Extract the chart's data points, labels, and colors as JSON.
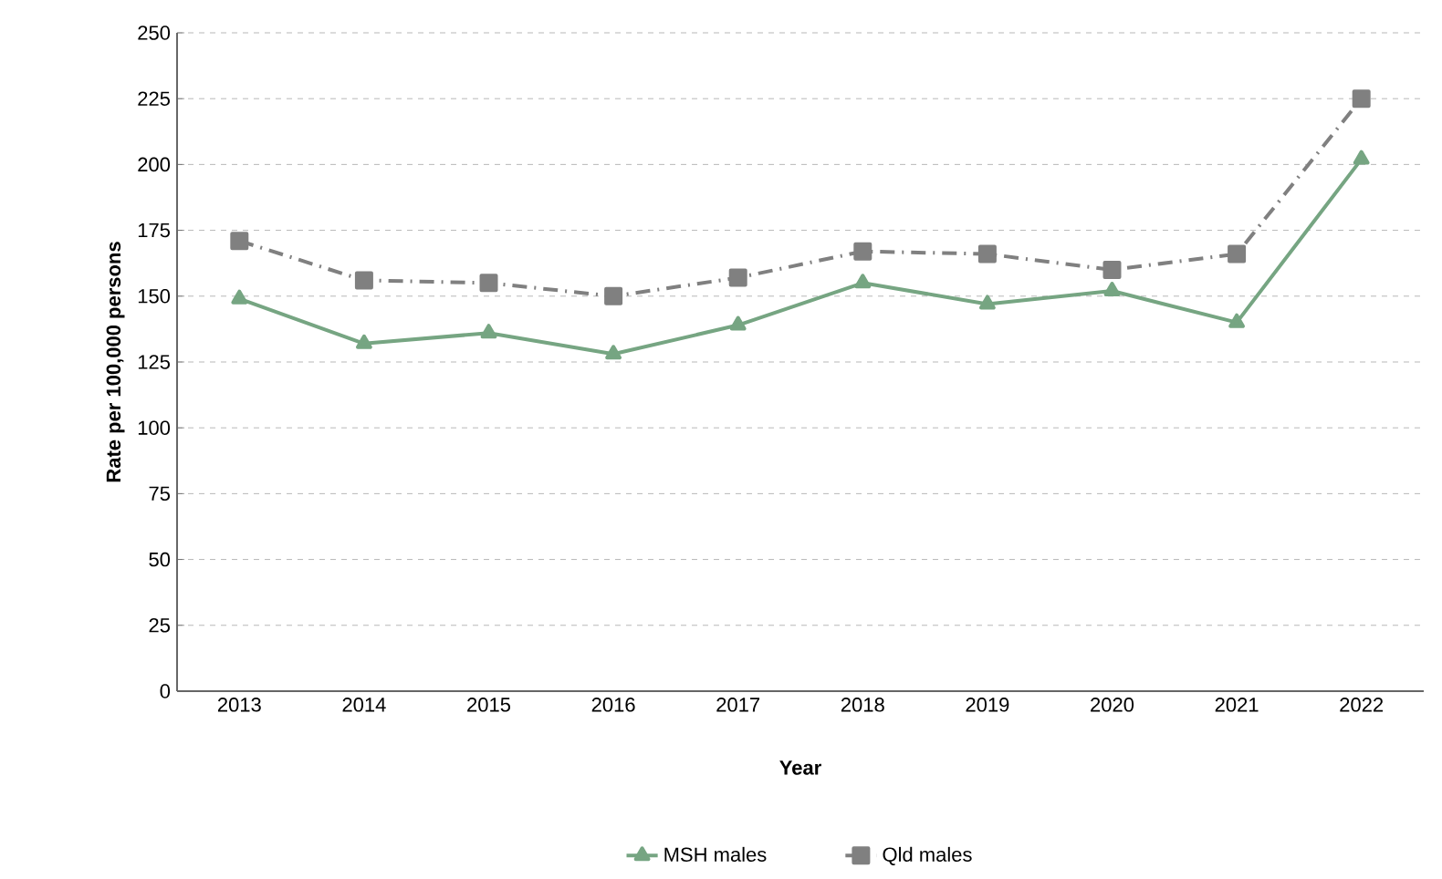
{
  "chart_data": {
    "type": "line",
    "xlabel": "Year",
    "ylabel": "Rate per 100,000 persons",
    "categories": [
      "2013",
      "2014",
      "2015",
      "2016",
      "2017",
      "2018",
      "2019",
      "2020",
      "2021",
      "2022"
    ],
    "series": [
      {
        "name": "MSH males",
        "color": "#76a582",
        "marker": "triangle",
        "line_style": "solid",
        "values": [
          149,
          132,
          136,
          128,
          139,
          155,
          147,
          152,
          140,
          202
        ]
      },
      {
        "name": "Qld males",
        "color": "#808080",
        "marker": "square",
        "line_style": "dashed",
        "values": [
          171,
          156,
          155,
          150,
          157,
          167,
          166,
          160,
          166,
          225
        ]
      }
    ],
    "ylim": [
      0,
      250
    ],
    "yticks": [
      0,
      25,
      50,
      75,
      100,
      125,
      150,
      175,
      200,
      225,
      250
    ],
    "grid": "y",
    "legend": "bottom"
  }
}
